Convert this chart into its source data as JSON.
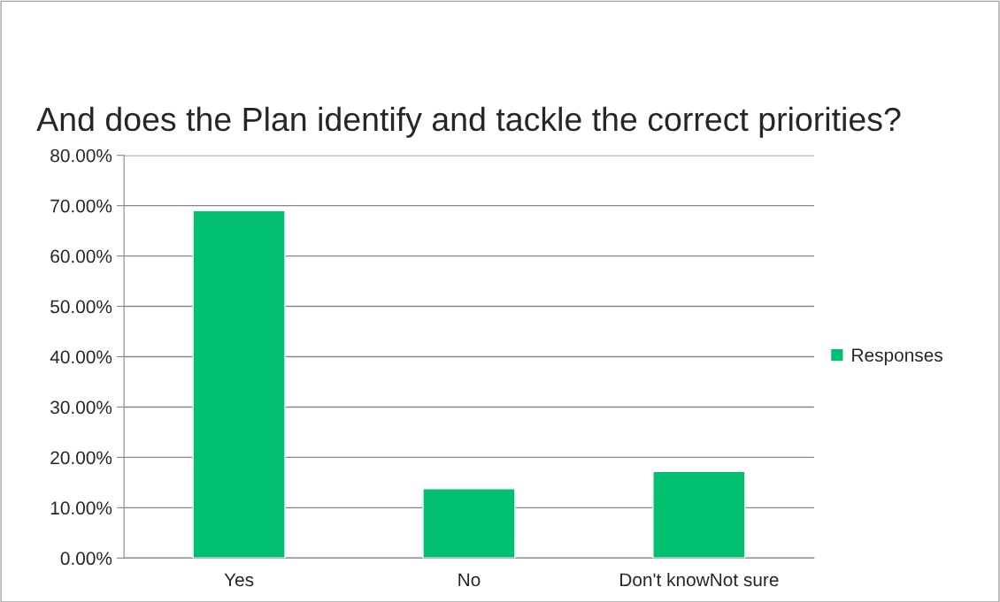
{
  "chart_data": {
    "type": "bar",
    "title": "And does the Plan identify and tackle the correct priorities?",
    "categories": [
      "Yes",
      "No",
      "Don't knowNot sure"
    ],
    "series": [
      {
        "name": "Responses",
        "color": "#00bf6f",
        "values": [
          69.0,
          13.8,
          17.2
        ]
      }
    ],
    "ylim": [
      0,
      80
    ],
    "yticks": [
      {
        "value": 0,
        "label": "0.00%"
      },
      {
        "value": 10,
        "label": "10.00%"
      },
      {
        "value": 20,
        "label": "20.00%"
      },
      {
        "value": 30,
        "label": "30.00%"
      },
      {
        "value": 40,
        "label": "40.00%"
      },
      {
        "value": 50,
        "label": "50.00%"
      },
      {
        "value": 60,
        "label": "60.00%"
      },
      {
        "value": 70,
        "label": "70.00%"
      },
      {
        "value": 80,
        "label": "80.00%"
      }
    ],
    "grid": "y",
    "legend": "right"
  }
}
